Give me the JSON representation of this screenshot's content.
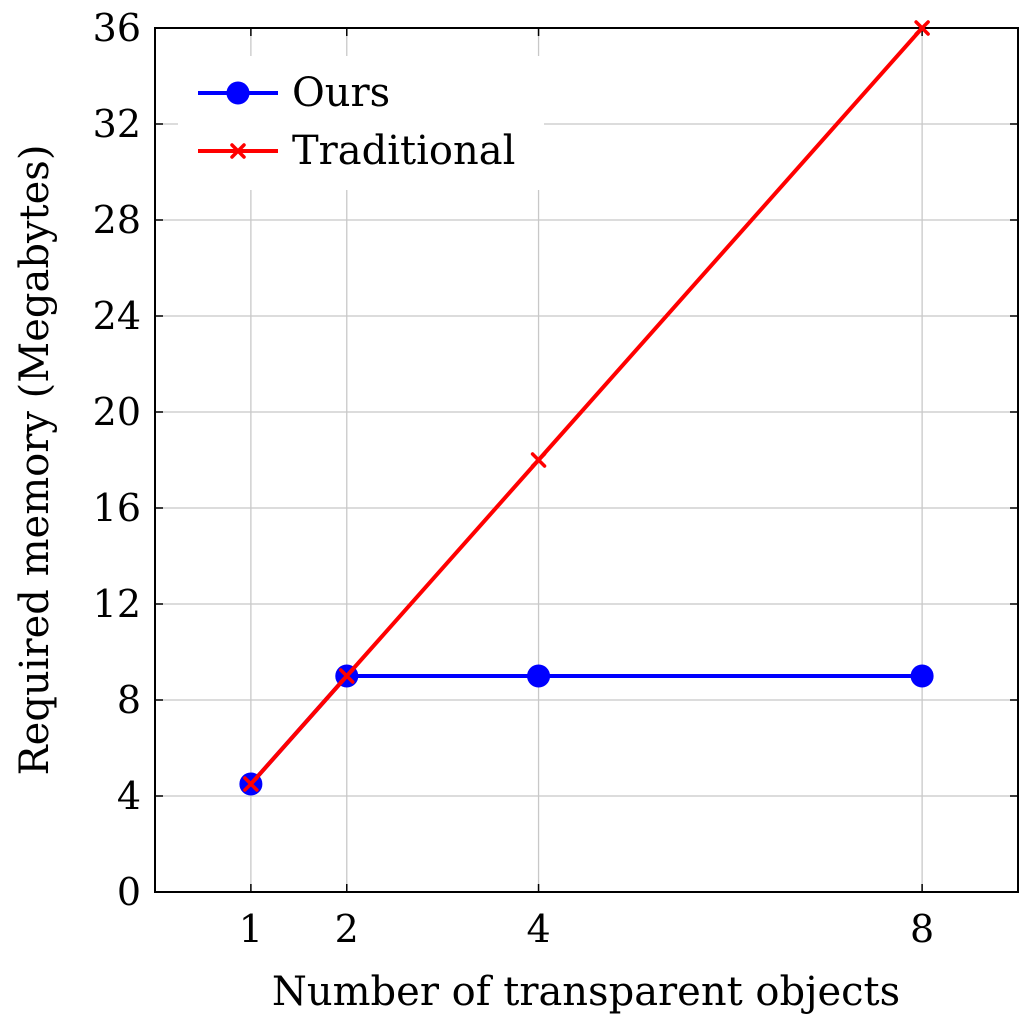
{
  "chart_data": {
    "type": "line",
    "title": "",
    "xlabel": "Number of transparent objects",
    "ylabel": "Required memory (Megabytes)",
    "xlim": [
      0,
      9
    ],
    "ylim": [
      0,
      36
    ],
    "xticks": [
      1,
      2,
      4,
      8
    ],
    "xtick_labels": [
      "1",
      "2",
      "4",
      "8"
    ],
    "yticks": [
      0,
      4,
      8,
      12,
      16,
      20,
      24,
      28,
      32,
      36
    ],
    "ytick_labels": [
      "0",
      "4",
      "8",
      "12",
      "16",
      "20",
      "24",
      "28",
      "32",
      "36"
    ],
    "grid": true,
    "legend_position": "top-left",
    "series": [
      {
        "name": "Ours",
        "color": "#0000ff",
        "marker": "circle",
        "x": [
          1,
          2,
          4,
          8
        ],
        "y": [
          4.5,
          9,
          9,
          9
        ]
      },
      {
        "name": "Traditional",
        "color": "#ff0000",
        "marker": "x",
        "x": [
          1,
          2,
          4,
          8
        ],
        "y": [
          4.5,
          9,
          18,
          36
        ]
      }
    ]
  }
}
